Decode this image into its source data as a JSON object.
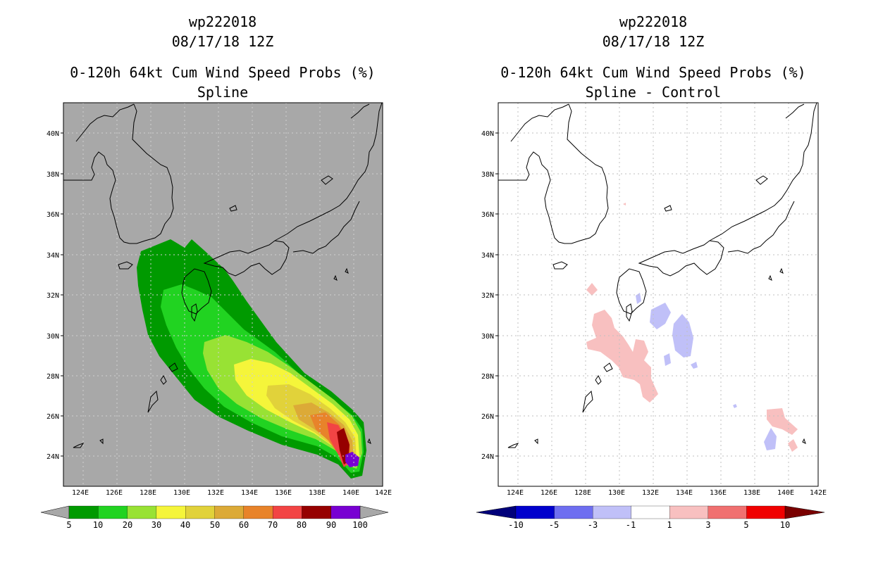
{
  "panels": [
    {
      "storm_id": "wp222018",
      "datetime": "08/17/18 12Z",
      "product": "0-120h 64kt Cum Wind Speed Probs (%)",
      "subtitle": "Spline",
      "background_color": "#a8a8a8",
      "lon_labels": [
        "124E",
        "126E",
        "128E",
        "130E",
        "132E",
        "134E",
        "136E",
        "138E",
        "140E",
        "142E"
      ],
      "lat_labels": [
        "24N",
        "26N",
        "28N",
        "30N",
        "32N",
        "34N",
        "36N",
        "38N",
        "40N"
      ],
      "colorbar": {
        "ticks": [
          "5",
          "10",
          "20",
          "30",
          "40",
          "50",
          "60",
          "70",
          "80",
          "90",
          "100"
        ],
        "colors": [
          "#009a00",
          "#21d321",
          "#98e234",
          "#f5f53a",
          "#e1d23a",
          "#dcaa37",
          "#e8832a",
          "#f24444",
          "#960000",
          "#7800d2"
        ],
        "under_color": "#a8a8a8",
        "over_color": "#a8a8a8"
      }
    },
    {
      "storm_id": "wp222018",
      "datetime": "08/17/18 12Z",
      "product": "0-120h 64kt Cum Wind Speed Probs (%)",
      "subtitle": "Spline - Control",
      "background_color": "#ffffff",
      "lon_labels": [
        "124E",
        "126E",
        "128E",
        "130E",
        "132E",
        "134E",
        "136E",
        "138E",
        "140E",
        "142E"
      ],
      "lat_labels": [
        "24N",
        "26N",
        "28N",
        "30N",
        "32N",
        "34N",
        "36N",
        "38N",
        "40N"
      ],
      "colorbar": {
        "ticks": [
          "-10",
          "-5",
          "-3",
          "-1",
          "1",
          "3",
          "5",
          "10"
        ],
        "colors": [
          "#0000cc",
          "#6e6ef0",
          "#c0c0f8",
          "#ffffff",
          "#f8c0c0",
          "#f07070",
          "#f00000"
        ],
        "under_color": "#00007a",
        "over_color": "#7a0000"
      }
    }
  ]
}
